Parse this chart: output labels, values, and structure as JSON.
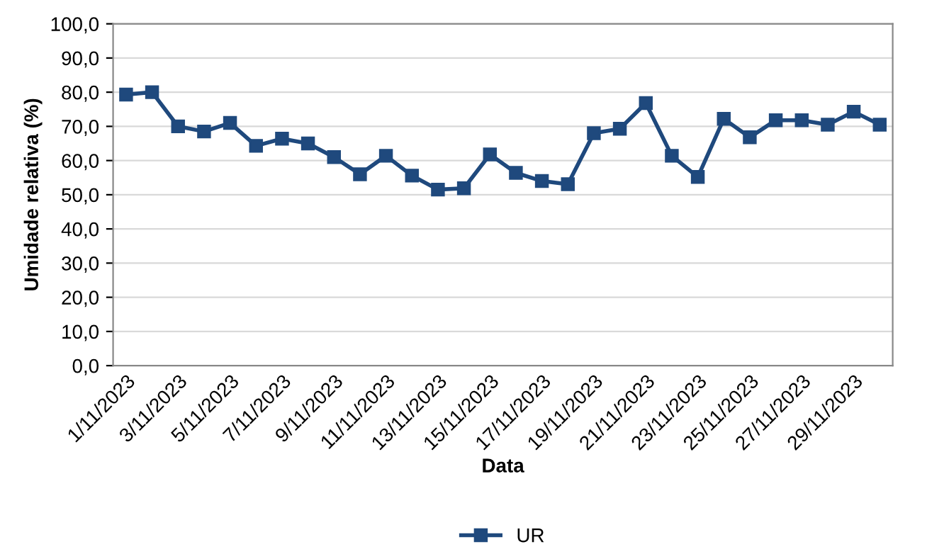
{
  "chart_data": {
    "type": "line",
    "xlabel": "Data",
    "ylabel": "Umidade relativa (%)",
    "categories": [
      "1/11/2023",
      null,
      "3/11/2023",
      null,
      "5/11/2023",
      null,
      "7/11/2023",
      null,
      "9/11/2023",
      null,
      "11/11/2023",
      null,
      "13/11/2023",
      null,
      "15/11/2023",
      null,
      "17/11/2023",
      null,
      "19/11/2023",
      null,
      "21/11/2023",
      null,
      "23/11/2023",
      null,
      "25/11/2023",
      null,
      "27/11/2023",
      null,
      "29/11/2023",
      null
    ],
    "series": [
      {
        "name": "UR",
        "color": "#1f497d",
        "values": [
          79.3,
          80,
          70,
          68.5,
          71,
          64.3,
          66.4,
          65,
          61,
          56,
          61.4,
          55.6,
          51.5,
          51.9,
          61.8,
          56.4,
          54,
          53.1,
          68,
          69.3,
          76.8,
          61.4,
          55.2,
          72.2,
          66.8,
          71.8,
          71.8,
          70.5,
          74.3,
          70.5
        ]
      }
    ],
    "ylim": [
      0,
      100
    ],
    "yticks": [
      {
        "value": 0,
        "label": "0,0"
      },
      {
        "value": 10,
        "label": "10,0"
      },
      {
        "value": 20,
        "label": "20,0"
      },
      {
        "value": 30,
        "label": "30,0"
      },
      {
        "value": 40,
        "label": "40,0"
      },
      {
        "value": 50,
        "label": "50,0"
      },
      {
        "value": 60,
        "label": "60,0"
      },
      {
        "value": 70,
        "label": "70,0"
      },
      {
        "value": 80,
        "label": "80,0"
      },
      {
        "value": 90,
        "label": "90,0"
      },
      {
        "value": 100,
        "label": "100,0"
      }
    ],
    "grid": "y",
    "legend": "bottom",
    "marker": "square",
    "line_style": "solid"
  }
}
